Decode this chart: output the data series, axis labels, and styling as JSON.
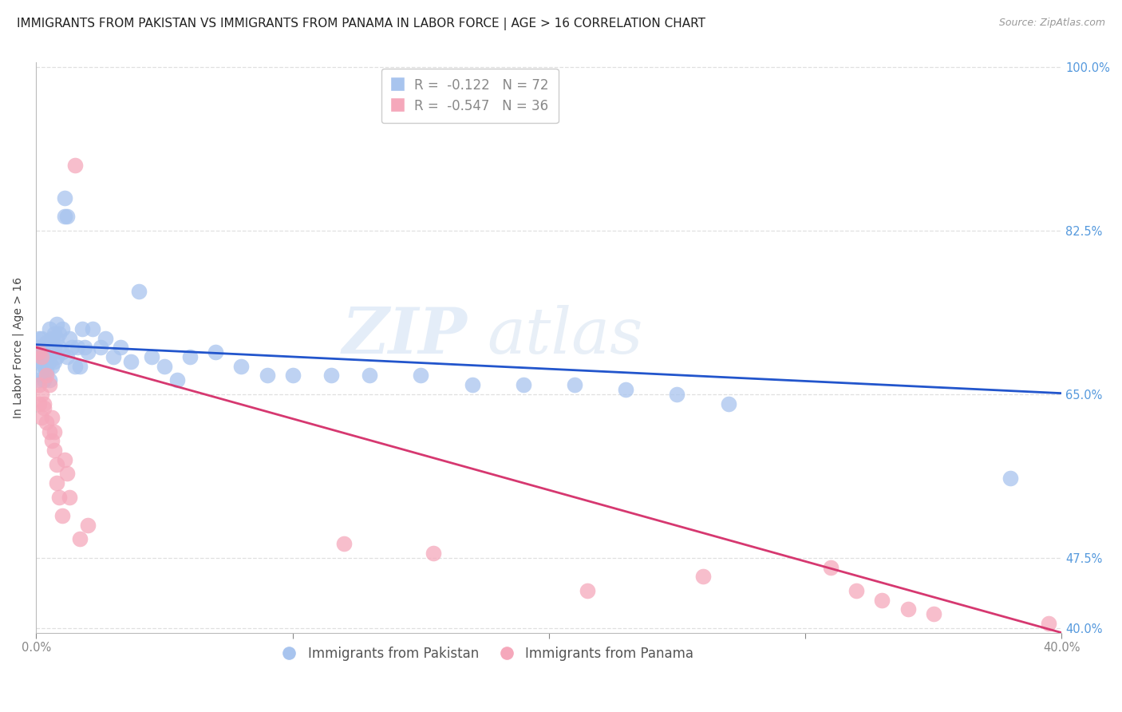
{
  "title": "IMMIGRANTS FROM PAKISTAN VS IMMIGRANTS FROM PANAMA IN LABOR FORCE | AGE > 16 CORRELATION CHART",
  "source": "Source: ZipAtlas.com",
  "ylabel": "In Labor Force | Age > 16",
  "pakistan_R": -0.122,
  "pakistan_N": 72,
  "panama_R": -0.547,
  "panama_N": 36,
  "pakistan_color": "#a8c4ee",
  "panama_color": "#f5a8bb",
  "trend_pakistan_color": "#2255cc",
  "trend_panama_color": "#d63870",
  "watermark_text": "ZIP",
  "watermark_text2": "atlas",
  "xlim": [
    0.0,
    0.4
  ],
  "ylim": [
    0.395,
    1.005
  ],
  "yticks": [
    0.4,
    0.475,
    0.65,
    0.825,
    1.0
  ],
  "ytick_labels": [
    "40.0%",
    "47.5%",
    "65.0%",
    "82.5%",
    "100.0%"
  ],
  "xticks": [
    0.0,
    0.1,
    0.2,
    0.3,
    0.4
  ],
  "grid_color": "#e0e0e0",
  "axis_color": "#bbbbbb",
  "right_tick_color": "#5599dd",
  "title_fontsize": 11,
  "source_fontsize": 9,
  "legend_fontsize": 12,
  "axis_label_fontsize": 10,
  "tick_fontsize": 10.5,
  "pakistan_x": [
    0.001,
    0.001,
    0.001,
    0.001,
    0.001,
    0.002,
    0.002,
    0.002,
    0.002,
    0.002,
    0.003,
    0.003,
    0.003,
    0.003,
    0.004,
    0.004,
    0.004,
    0.004,
    0.005,
    0.005,
    0.005,
    0.005,
    0.006,
    0.006,
    0.006,
    0.007,
    0.007,
    0.007,
    0.008,
    0.008,
    0.008,
    0.009,
    0.009,
    0.01,
    0.01,
    0.011,
    0.011,
    0.012,
    0.012,
    0.013,
    0.014,
    0.015,
    0.016,
    0.017,
    0.018,
    0.019,
    0.02,
    0.022,
    0.025,
    0.027,
    0.03,
    0.033,
    0.037,
    0.04,
    0.045,
    0.05,
    0.055,
    0.06,
    0.07,
    0.08,
    0.09,
    0.1,
    0.115,
    0.13,
    0.15,
    0.17,
    0.19,
    0.21,
    0.23,
    0.25,
    0.27,
    0.38
  ],
  "pakistan_y": [
    0.685,
    0.695,
    0.7,
    0.665,
    0.71,
    0.69,
    0.685,
    0.7,
    0.67,
    0.71,
    0.695,
    0.68,
    0.7,
    0.665,
    0.705,
    0.695,
    0.675,
    0.685,
    0.72,
    0.7,
    0.685,
    0.665,
    0.695,
    0.71,
    0.68,
    0.715,
    0.7,
    0.685,
    0.725,
    0.71,
    0.69,
    0.715,
    0.7,
    0.72,
    0.695,
    0.84,
    0.86,
    0.84,
    0.69,
    0.71,
    0.7,
    0.68,
    0.7,
    0.68,
    0.72,
    0.7,
    0.695,
    0.72,
    0.7,
    0.71,
    0.69,
    0.7,
    0.685,
    0.76,
    0.69,
    0.68,
    0.665,
    0.69,
    0.695,
    0.68,
    0.67,
    0.67,
    0.67,
    0.67,
    0.67,
    0.66,
    0.66,
    0.66,
    0.655,
    0.65,
    0.64,
    0.56
  ],
  "panama_x": [
    0.001,
    0.001,
    0.001,
    0.002,
    0.002,
    0.002,
    0.003,
    0.003,
    0.004,
    0.004,
    0.005,
    0.005,
    0.006,
    0.006,
    0.007,
    0.007,
    0.008,
    0.008,
    0.009,
    0.01,
    0.011,
    0.012,
    0.013,
    0.015,
    0.017,
    0.02,
    0.12,
    0.155,
    0.215,
    0.26,
    0.31,
    0.32,
    0.33,
    0.34,
    0.35,
    0.395
  ],
  "panama_y": [
    0.695,
    0.64,
    0.66,
    0.69,
    0.625,
    0.65,
    0.64,
    0.635,
    0.67,
    0.62,
    0.66,
    0.61,
    0.625,
    0.6,
    0.61,
    0.59,
    0.575,
    0.555,
    0.54,
    0.52,
    0.58,
    0.565,
    0.54,
    0.895,
    0.495,
    0.51,
    0.49,
    0.48,
    0.44,
    0.455,
    0.465,
    0.44,
    0.43,
    0.42,
    0.415,
    0.405
  ],
  "pak_trend_x0": 0.0,
  "pak_trend_y0": 0.703,
  "pak_trend_x1": 0.4,
  "pak_trend_y1": 0.651,
  "pan_trend_x0": 0.0,
  "pan_trend_y0": 0.7,
  "pan_trend_x1": 0.4,
  "pan_trend_y1": 0.395
}
